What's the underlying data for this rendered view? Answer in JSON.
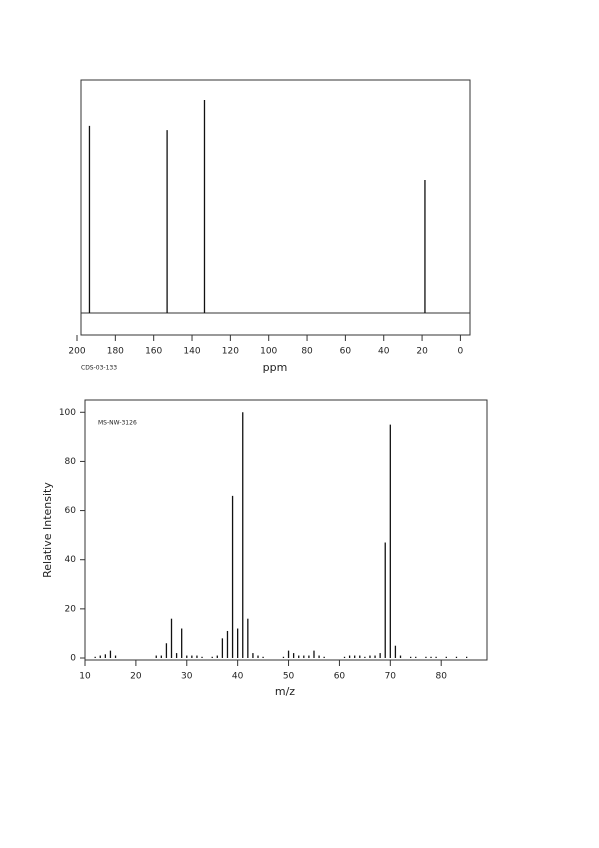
{
  "chart_data": [
    {
      "type": "spectrum",
      "note": "CDS-03-133",
      "x_label": "ppm",
      "x": [
        193.5,
        153,
        133.5,
        18.5
      ],
      "values": [
        80.3,
        78.5,
        91.4,
        57.1
      ],
      "xlim": [
        200,
        -5
      ],
      "ylim": [
        0,
        100
      ],
      "xticks": [
        200,
        180,
        160,
        140,
        120,
        100,
        80,
        60,
        40,
        20,
        0
      ]
    },
    {
      "type": "spectrum",
      "note": "MS-NW-3126",
      "x_label": "m/z",
      "y_label": "Relative Intensity",
      "x": [
        12,
        13,
        14,
        15,
        16,
        24,
        25,
        26,
        27,
        28,
        29,
        30,
        31,
        32,
        33,
        35,
        36,
        37,
        38,
        39,
        40,
        41,
        42,
        43,
        44,
        45,
        49,
        50,
        51,
        52,
        53,
        54,
        55,
        56,
        57,
        61,
        62,
        63,
        64,
        65,
        66,
        67,
        68,
        69,
        70,
        71,
        72,
        74,
        75,
        77,
        78,
        79,
        81,
        83,
        85
      ],
      "values": [
        0.5,
        1,
        1.5,
        3,
        1,
        1,
        1,
        6,
        16,
        2,
        12,
        1,
        1,
        1,
        0.5,
        0.5,
        1,
        8,
        11,
        66,
        12,
        100,
        16,
        2,
        1,
        0.5,
        0.5,
        3,
        2,
        1,
        1,
        1,
        3,
        1,
        0.5,
        0.5,
        1,
        1,
        1,
        0.5,
        1,
        1,
        2,
        47,
        95,
        5,
        1,
        0.5,
        0.5,
        0.5,
        0.5,
        0.5,
        0.5,
        0.5,
        0.5
      ],
      "xlim": [
        10,
        89
      ],
      "ylim": [
        0,
        105
      ],
      "xticks": [
        10,
        20,
        30,
        40,
        50,
        60,
        70,
        80
      ],
      "yticks": [
        0,
        20,
        40,
        60,
        80,
        100
      ]
    }
  ]
}
